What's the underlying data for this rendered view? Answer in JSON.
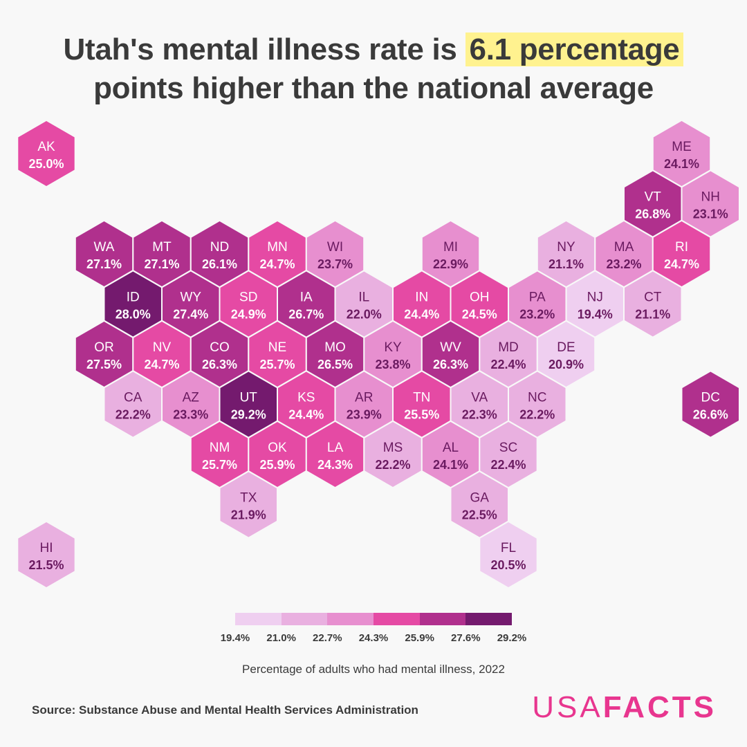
{
  "title": {
    "pre": "Utah's mental illness rate is ",
    "highlight": "6.1 percentage",
    "post": "points higher than the national average"
  },
  "legend": {
    "colors": [
      "#efcff0",
      "#e9b0e0",
      "#e78fcf",
      "#e54aa4",
      "#b0308d",
      "#741a6e"
    ],
    "ticks": [
      "19.4%",
      "21.0%",
      "22.7%",
      "24.3%",
      "25.9%",
      "27.6%",
      "29.2%"
    ],
    "caption": "Percentage of adults who had mental illness, 2022"
  },
  "source": "Source: Substance Abuse and Mental Health Services Administration",
  "logo": {
    "light": "USA",
    "bold": "FACTS"
  },
  "map_data": {
    "states": [
      {
        "abbr": "AK",
        "value": "25.0%",
        "row": 0,
        "col": 0
      },
      {
        "abbr": "ME",
        "value": "24.1%",
        "row": 0,
        "col": 11
      },
      {
        "abbr": "VT",
        "value": "26.8%",
        "row": 1,
        "col": 10
      },
      {
        "abbr": "NH",
        "value": "23.1%",
        "row": 1,
        "col": 11
      },
      {
        "abbr": "WA",
        "value": "27.1%",
        "row": 2,
        "col": 1
      },
      {
        "abbr": "MT",
        "value": "27.1%",
        "row": 2,
        "col": 2
      },
      {
        "abbr": "ND",
        "value": "26.1%",
        "row": 2,
        "col": 3
      },
      {
        "abbr": "MN",
        "value": "24.7%",
        "row": 2,
        "col": 4
      },
      {
        "abbr": "WI",
        "value": "23.7%",
        "row": 2,
        "col": 5
      },
      {
        "abbr": "MI",
        "value": "22.9%",
        "row": 2,
        "col": 7
      },
      {
        "abbr": "NY",
        "value": "21.1%",
        "row": 2,
        "col": 9
      },
      {
        "abbr": "MA",
        "value": "23.2%",
        "row": 2,
        "col": 10
      },
      {
        "abbr": "RI",
        "value": "24.7%",
        "row": 2,
        "col": 11
      },
      {
        "abbr": "ID",
        "value": "28.0%",
        "row": 3,
        "col": 1
      },
      {
        "abbr": "WY",
        "value": "27.4%",
        "row": 3,
        "col": 2
      },
      {
        "abbr": "SD",
        "value": "24.9%",
        "row": 3,
        "col": 3
      },
      {
        "abbr": "IA",
        "value": "26.7%",
        "row": 3,
        "col": 4
      },
      {
        "abbr": "IL",
        "value": "22.0%",
        "row": 3,
        "col": 5
      },
      {
        "abbr": "IN",
        "value": "24.4%",
        "row": 3,
        "col": 6
      },
      {
        "abbr": "OH",
        "value": "24.5%",
        "row": 3,
        "col": 7
      },
      {
        "abbr": "PA",
        "value": "23.2%",
        "row": 3,
        "col": 8
      },
      {
        "abbr": "NJ",
        "value": "19.4%",
        "row": 3,
        "col": 9
      },
      {
        "abbr": "CT",
        "value": "21.1%",
        "row": 3,
        "col": 10
      },
      {
        "abbr": "OR",
        "value": "27.5%",
        "row": 4,
        "col": 1
      },
      {
        "abbr": "NV",
        "value": "24.7%",
        "row": 4,
        "col": 2
      },
      {
        "abbr": "CO",
        "value": "26.3%",
        "row": 4,
        "col": 3
      },
      {
        "abbr": "NE",
        "value": "25.7%",
        "row": 4,
        "col": 4
      },
      {
        "abbr": "MO",
        "value": "26.5%",
        "row": 4,
        "col": 5
      },
      {
        "abbr": "KY",
        "value": "23.8%",
        "row": 4,
        "col": 6
      },
      {
        "abbr": "WV",
        "value": "26.3%",
        "row": 4,
        "col": 7
      },
      {
        "abbr": "MD",
        "value": "22.4%",
        "row": 4,
        "col": 8
      },
      {
        "abbr": "DE",
        "value": "20.9%",
        "row": 4,
        "col": 9
      },
      {
        "abbr": "CA",
        "value": "22.2%",
        "row": 5,
        "col": 1
      },
      {
        "abbr": "AZ",
        "value": "23.3%",
        "row": 5,
        "col": 2
      },
      {
        "abbr": "UT",
        "value": "29.2%",
        "row": 5,
        "col": 3
      },
      {
        "abbr": "KS",
        "value": "24.4%",
        "row": 5,
        "col": 4
      },
      {
        "abbr": "AR",
        "value": "23.9%",
        "row": 5,
        "col": 5
      },
      {
        "abbr": "TN",
        "value": "25.5%",
        "row": 5,
        "col": 6
      },
      {
        "abbr": "VA",
        "value": "22.3%",
        "row": 5,
        "col": 7
      },
      {
        "abbr": "NC",
        "value": "22.2%",
        "row": 5,
        "col": 8
      },
      {
        "abbr": "DC",
        "value": "26.6%",
        "row": 5,
        "col": 11
      },
      {
        "abbr": "NM",
        "value": "25.7%",
        "row": 6,
        "col": 3
      },
      {
        "abbr": "OK",
        "value": "25.9%",
        "row": 6,
        "col": 4
      },
      {
        "abbr": "LA",
        "value": "24.3%",
        "row": 6,
        "col": 5
      },
      {
        "abbr": "MS",
        "value": "22.2%",
        "row": 6,
        "col": 6
      },
      {
        "abbr": "AL",
        "value": "24.1%",
        "row": 6,
        "col": 7
      },
      {
        "abbr": "SC",
        "value": "22.4%",
        "row": 6,
        "col": 8
      },
      {
        "abbr": "TX",
        "value": "21.9%",
        "row": 7,
        "col": 3
      },
      {
        "abbr": "GA",
        "value": "22.5%",
        "row": 7,
        "col": 7
      },
      {
        "abbr": "HI",
        "value": "21.5%",
        "row": 8,
        "col": 0
      },
      {
        "abbr": "FL",
        "value": "20.5%",
        "row": 8,
        "col": 8
      }
    ]
  }
}
